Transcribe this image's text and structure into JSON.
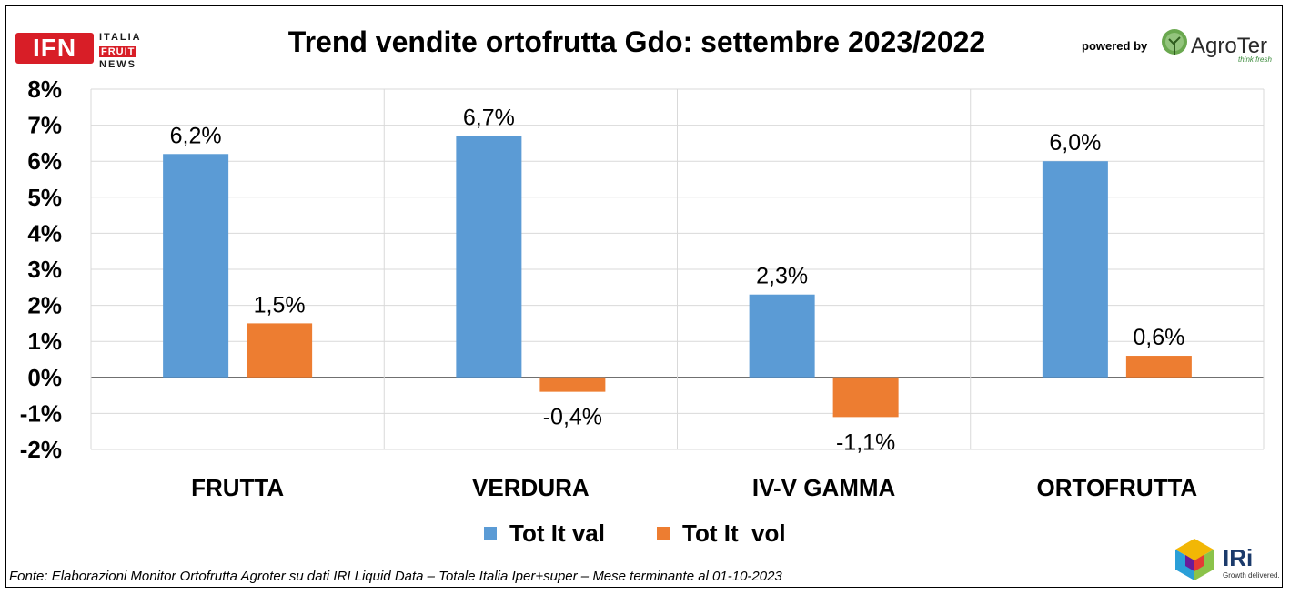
{
  "header": {
    "title": "Trend vendite ortofrutta Gdo: settembre 2023/2022",
    "powered_by": "powered by",
    "logo_ifn": {
      "letters": "IFN",
      "line1": "ITALIA",
      "line2": "FRUIT",
      "line3": "NEWS"
    },
    "logo_agroter": {
      "name": "AgroTer",
      "tagline": "think fresh"
    },
    "logo_iri": {
      "name": "IRi",
      "tagline": "Growth delivered."
    }
  },
  "footer": {
    "source": "Fonte: Elaborazioni Monitor Ortofrutta Agroter su dati IRI Liquid Data – Totale Italia Iper+super – Mese terminante al 01-10-2023"
  },
  "colors": {
    "val": "#5b9bd5",
    "vol": "#ed7d31",
    "grid": "#d9d9d9",
    "ifn_red": "#d81e27"
  },
  "chart_data": {
    "type": "bar",
    "title": "Trend vendite ortofrutta Gdo: settembre 2023/2022",
    "categories": [
      "FRUTTA",
      "VERDURA",
      "IV-V GAMMA",
      "ORTOFRUTTA"
    ],
    "series": [
      {
        "name": "Tot It val",
        "values": [
          6.2,
          6.7,
          2.3,
          6.0
        ],
        "labels": [
          "6,2%",
          "6,7%",
          "2,3%",
          "6,0%"
        ]
      },
      {
        "name": "Tot It  vol",
        "values": [
          1.5,
          -0.4,
          -1.1,
          0.6
        ],
        "labels": [
          "1,5%",
          "-0,4%",
          "-1,1%",
          "0,6%"
        ]
      }
    ],
    "y_ticks": [
      "8%",
      "7%",
      "6%",
      "5%",
      "4%",
      "3%",
      "2%",
      "1%",
      "0%",
      "-1%",
      "-2%"
    ],
    "y_tick_values": [
      8,
      7,
      6,
      5,
      4,
      3,
      2,
      1,
      0,
      -1,
      -2
    ],
    "ylim": [
      -2,
      8
    ],
    "xlabel": "",
    "ylabel": "",
    "grid": true,
    "legend": "bottom"
  }
}
